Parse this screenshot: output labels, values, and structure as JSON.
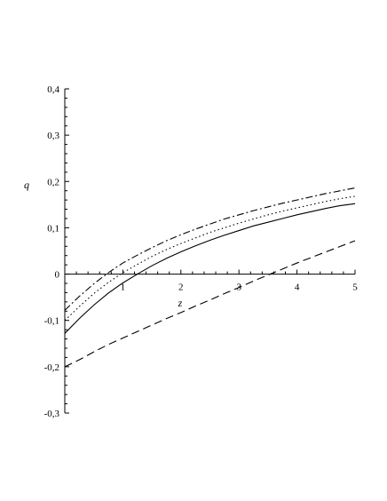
{
  "chart_data": {
    "type": "line",
    "title": "",
    "xlabel": "z",
    "ylabel": "q",
    "xlim": [
      0,
      5
    ],
    "ylim": [
      -0.3,
      0.4
    ],
    "grid": false,
    "x_ticks": [
      {
        "value": 1,
        "label": "1"
      },
      {
        "value": 2,
        "label": "2"
      },
      {
        "value": 3,
        "label": "3"
      },
      {
        "value": 4,
        "label": "4"
      },
      {
        "value": 5,
        "label": "5"
      }
    ],
    "y_ticks": [
      {
        "value": 0.4,
        "label": "0,4"
      },
      {
        "value": 0.3,
        "label": "0,3"
      },
      {
        "value": 0.2,
        "label": "0,2"
      },
      {
        "value": 0.1,
        "label": "0,1"
      },
      {
        "value": 0,
        "label": "0"
      },
      {
        "value": -0.1,
        "label": "-0,1"
      },
      {
        "value": -0.2,
        "label": "-0,2"
      },
      {
        "value": -0.3,
        "label": "-0,3"
      }
    ],
    "x": [
      0,
      0.25,
      0.5,
      0.75,
      1,
      1.25,
      1.5,
      1.75,
      2,
      2.25,
      2.5,
      2.75,
      3,
      3.25,
      3.5,
      3.75,
      4,
      4.25,
      4.5,
      4.75,
      5
    ],
    "series": [
      {
        "style": "dash-dot",
        "values": [
          -0.078,
          -0.048,
          -0.021,
          0.003,
          0.024,
          0.041,
          0.057,
          0.072,
          0.085,
          0.097,
          0.108,
          0.119,
          0.128,
          0.137,
          0.145,
          0.153,
          0.16,
          0.167,
          0.174,
          0.18,
          0.186
        ]
      },
      {
        "style": "dotted",
        "values": [
          -0.1,
          -0.07,
          -0.042,
          -0.018,
          0.003,
          0.021,
          0.038,
          0.053,
          0.066,
          0.078,
          0.09,
          0.1,
          0.11,
          0.119,
          0.128,
          0.136,
          0.143,
          0.15,
          0.157,
          0.163,
          0.168
        ]
      },
      {
        "style": "solid",
        "values": [
          -0.128,
          -0.096,
          -0.067,
          -0.041,
          -0.019,
          0.0,
          0.018,
          0.034,
          0.048,
          0.061,
          0.073,
          0.084,
          0.094,
          0.104,
          0.112,
          0.12,
          0.128,
          0.135,
          0.142,
          0.148,
          0.152
        ]
      },
      {
        "style": "dashed",
        "values": [
          -0.2,
          -0.185,
          -0.168,
          -0.152,
          -0.138,
          -0.124,
          -0.11,
          -0.096,
          -0.083,
          -0.069,
          -0.056,
          -0.042,
          -0.029,
          -0.015,
          -0.002,
          0.011,
          0.024,
          0.036,
          0.048,
          0.06,
          0.072
        ]
      }
    ]
  }
}
